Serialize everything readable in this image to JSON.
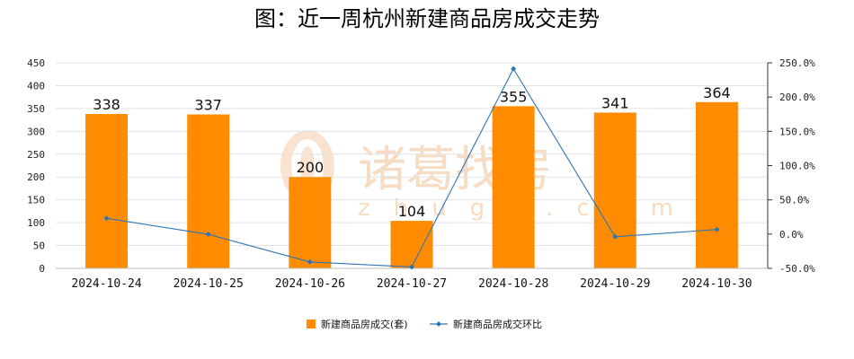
{
  "chart_data": {
    "type": "bar",
    "title": "图：近一周杭州新建商品房成交走势",
    "categories": [
      "2024-10-24",
      "2024-10-25",
      "2024-10-26",
      "2024-10-27",
      "2024-10-28",
      "2024-10-29",
      "2024-10-30"
    ],
    "series": [
      {
        "name": "新建商品房成交(套)",
        "type": "bar",
        "axis": "left",
        "color": "#ff8c00",
        "values": [
          338,
          337,
          200,
          104,
          355,
          341,
          364
        ]
      },
      {
        "name": "新建商品房成交环比",
        "type": "line",
        "axis": "right",
        "color": "#2e75b6",
        "values": [
          23.0,
          -0.3,
          -40.7,
          -48.0,
          241.3,
          -3.9,
          6.7
        ]
      }
    ],
    "left_axis": {
      "min": 0,
      "max": 450,
      "step": 50,
      "ticks": [
        "0",
        "50",
        "100",
        "150",
        "200",
        "250",
        "300",
        "350",
        "400",
        "450"
      ]
    },
    "right_axis": {
      "min": -50,
      "max": 250,
      "step": 50,
      "ticks": [
        "-50.0%",
        "0.0%",
        "50.0%",
        "100.0%",
        "150.0%",
        "200.0%",
        "250.0%"
      ]
    },
    "grid": true,
    "legend_position": "bottom"
  },
  "watermark": {
    "brand": "诸葛找房",
    "url": "zhuge.com"
  }
}
